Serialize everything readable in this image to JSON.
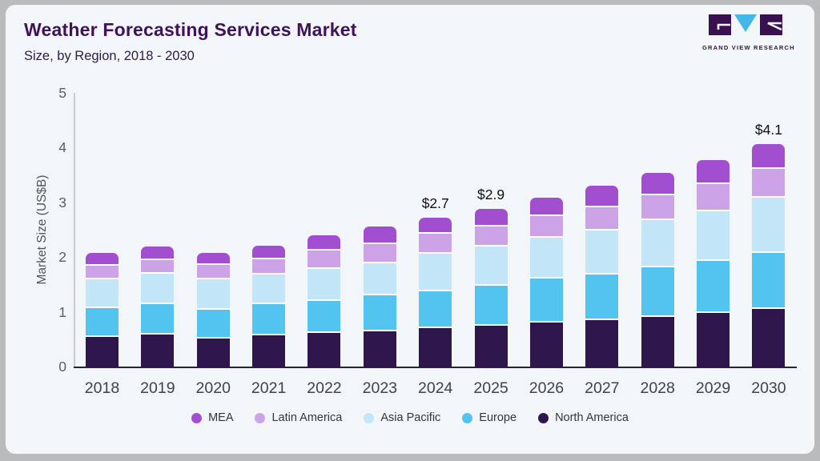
{
  "header": {
    "title": "Weather Forecasting Services Market",
    "subtitle": "Size, by Region, 2018 - 2030"
  },
  "logo": {
    "text": "GRAND VIEW RESEARCH",
    "purple": "#3a1150",
    "blue": "#45b6e8"
  },
  "chart_data": {
    "type": "bar",
    "stacked": true,
    "title": "Weather Forecasting Services Market",
    "subtitle": "Size, by Region, 2018 - 2030",
    "xlabel": "",
    "ylabel": "Market Size (US$B)",
    "ylim": [
      0,
      5
    ],
    "yticks": [
      0,
      1,
      2,
      3,
      4,
      5
    ],
    "grid": false,
    "legend_position": "bottom",
    "categories": [
      "2018",
      "2019",
      "2020",
      "2021",
      "2022",
      "2023",
      "2024",
      "2025",
      "2026",
      "2027",
      "2028",
      "2029",
      "2030"
    ],
    "series": [
      {
        "name": "North America",
        "color": "#2e154c",
        "values": [
          0.58,
          0.63,
          0.56,
          0.62,
          0.65,
          0.69,
          0.74,
          0.79,
          0.84,
          0.89,
          0.95,
          1.02,
          1.1
        ]
      },
      {
        "name": "Europe",
        "color": "#53c3f0",
        "values": [
          0.52,
          0.55,
          0.52,
          0.57,
          0.59,
          0.65,
          0.67,
          0.73,
          0.8,
          0.83,
          0.91,
          0.95,
          1.02
        ]
      },
      {
        "name": "Asia Pacific",
        "color": "#c2e6f7",
        "values": [
          0.53,
          0.56,
          0.55,
          0.54,
          0.58,
          0.59,
          0.68,
          0.72,
          0.75,
          0.81,
          0.86,
          0.91,
          1.01
        ]
      },
      {
        "name": "Latin America",
        "color": "#cda3e8",
        "values": [
          0.25,
          0.25,
          0.26,
          0.28,
          0.33,
          0.35,
          0.37,
          0.37,
          0.4,
          0.42,
          0.45,
          0.5,
          0.53
        ]
      },
      {
        "name": "MEA",
        "color": "#a24ed1",
        "values": [
          0.21,
          0.22,
          0.19,
          0.22,
          0.25,
          0.29,
          0.27,
          0.29,
          0.31,
          0.37,
          0.38,
          0.41,
          0.43
        ]
      }
    ],
    "totals": [
      2.09,
      2.21,
      2.08,
      2.23,
      2.4,
      2.57,
      2.73,
      2.9,
      3.1,
      3.32,
      3.55,
      3.79,
      4.09
    ],
    "annotations": [
      {
        "category": "2024",
        "label": "$2.7"
      },
      {
        "category": "2025",
        "label": "$2.9"
      },
      {
        "category": "2030",
        "label": "$4.1"
      }
    ]
  }
}
